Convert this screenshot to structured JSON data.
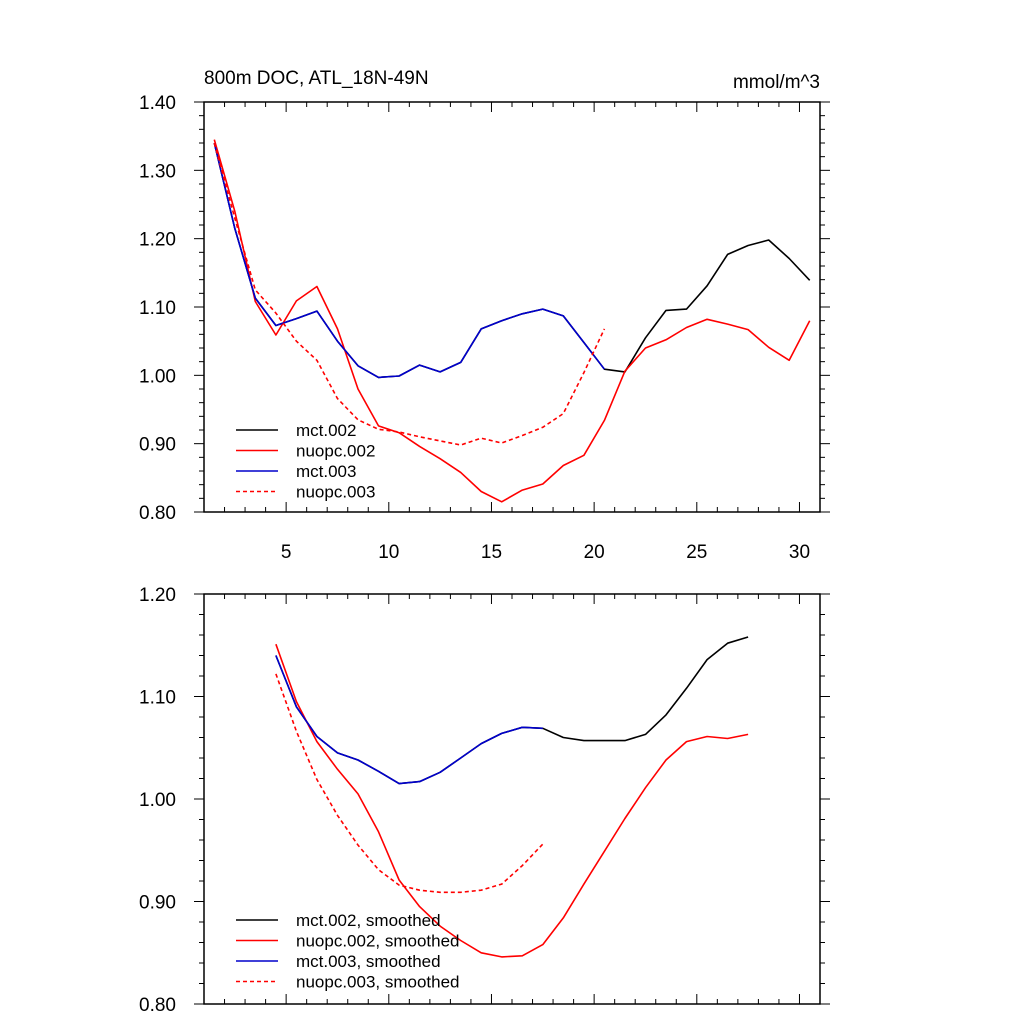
{
  "colors": {
    "mct002": "#000000",
    "nuopc002": "#ff0000",
    "mct003": "#0000cc",
    "nuopc003": "#ff0000"
  },
  "chart_data": [
    {
      "type": "line",
      "title": "800m DOC, ATL_18N-49N",
      "units": "mmol/m^3",
      "xlim": [
        1,
        31
      ],
      "ylim": [
        0.8,
        1.4
      ],
      "x_ticks": [
        5,
        10,
        15,
        20,
        25,
        30
      ],
      "x_tick_labels": [
        "5",
        "10",
        "15",
        "20",
        "25",
        "30"
      ],
      "y_ticks": [
        0.8,
        0.9,
        1.0,
        1.1,
        1.2,
        1.3,
        1.4
      ],
      "y_tick_labels": [
        "0.80",
        "0.90",
        "1.00",
        "1.10",
        "1.20",
        "1.30",
        "1.40"
      ],
      "legend_position": "bottom-left",
      "series": [
        {
          "name": "mct.002",
          "color": "#000000",
          "dash": "solid",
          "x": [
            1.5,
            2.5,
            3.5,
            4.5,
            5.5,
            6.5,
            7.5,
            8.5,
            9.5,
            10.5,
            11.5,
            12.5,
            13.5,
            14.5,
            15.5,
            16.5,
            17.5,
            18.5,
            19.5,
            20.5,
            21.5,
            22.5,
            23.5,
            24.5,
            25.5,
            26.5,
            27.5,
            28.5,
            29.5,
            30.5
          ],
          "values": [
            1.34,
            1.215,
            1.113,
            1.073,
            1.083,
            1.094,
            1.05,
            1.014,
            0.997,
            0.999,
            1.015,
            1.005,
            1.019,
            1.068,
            1.08,
            1.09,
            1.097,
            1.087,
            1.048,
            1.009,
            1.005,
            1.055,
            1.095,
            1.097,
            1.131,
            1.177,
            1.19,
            1.198,
            1.171,
            1.139
          ]
        },
        {
          "name": "nuopc.002",
          "color": "#ff0000",
          "dash": "solid",
          "x": [
            1.5,
            2.5,
            3.5,
            4.5,
            5.5,
            6.5,
            7.5,
            8.5,
            9.5,
            10.5,
            11.5,
            12.5,
            13.5,
            14.5,
            15.5,
            16.5,
            17.5,
            18.5,
            19.5,
            20.5,
            21.5,
            22.5,
            23.5,
            24.5,
            25.5,
            26.5,
            27.5,
            28.5,
            29.5,
            30.5
          ],
          "values": [
            1.345,
            1.24,
            1.108,
            1.059,
            1.109,
            1.13,
            1.068,
            0.98,
            0.926,
            0.916,
            0.896,
            0.878,
            0.858,
            0.83,
            0.815,
            0.832,
            0.841,
            0.868,
            0.883,
            0.934,
            1.006,
            1.04,
            1.052,
            1.07,
            1.082,
            1.075,
            1.067,
            1.041,
            1.022,
            1.08
          ]
        },
        {
          "name": "mct.003",
          "color": "#0000cc",
          "dash": "solid",
          "x": [
            1.5,
            2.5,
            3.5,
            4.5,
            5.5,
            6.5,
            7.5,
            8.5,
            9.5,
            10.5,
            11.5,
            12.5,
            13.5,
            14.5,
            15.5,
            16.5,
            17.5,
            18.5,
            19.5,
            20.5
          ],
          "values": [
            1.34,
            1.215,
            1.113,
            1.073,
            1.083,
            1.094,
            1.05,
            1.014,
            0.997,
            0.999,
            1.015,
            1.005,
            1.019,
            1.068,
            1.08,
            1.09,
            1.097,
            1.087,
            1.048,
            1.009
          ]
        },
        {
          "name": "nuopc.003",
          "color": "#ff0000",
          "dash": "dashed",
          "x": [
            1.5,
            2.5,
            3.5,
            4.5,
            5.5,
            6.5,
            7.5,
            8.5,
            9.5,
            10.5,
            11.5,
            12.5,
            13.5,
            14.5,
            15.5,
            16.5,
            17.5,
            18.5,
            19.5,
            20.5
          ],
          "values": [
            1.34,
            1.23,
            1.125,
            1.091,
            1.05,
            1.022,
            0.966,
            0.935,
            0.921,
            0.917,
            0.91,
            0.904,
            0.898,
            0.908,
            0.901,
            0.912,
            0.924,
            0.944,
            1.004,
            1.068
          ]
        }
      ]
    },
    {
      "type": "line",
      "title": "",
      "xlim": [
        1,
        31
      ],
      "ylim": [
        0.8,
        1.2
      ],
      "x_ticks": [
        5,
        10,
        15,
        20,
        25,
        30
      ],
      "x_tick_labels": [],
      "y_ticks": [
        0.8,
        0.9,
        1.0,
        1.1,
        1.2
      ],
      "y_tick_labels": [
        "0.80",
        "0.90",
        "1.00",
        "1.10",
        "1.20"
      ],
      "legend_position": "bottom-left",
      "series": [
        {
          "name": "mct.002, smoothed",
          "color": "#000000",
          "dash": "solid",
          "x": [
            4.5,
            5.5,
            6.5,
            7.5,
            8.5,
            9.5,
            10.5,
            11.5,
            12.5,
            13.5,
            14.5,
            15.5,
            16.5,
            17.5,
            18.5,
            19.5,
            20.5,
            21.5,
            22.5,
            23.5,
            24.5,
            25.5,
            26.5,
            27.5
          ],
          "values": [
            1.14,
            1.09,
            1.061,
            1.045,
            1.038,
            1.027,
            1.015,
            1.017,
            1.026,
            1.04,
            1.054,
            1.064,
            1.07,
            1.069,
            1.06,
            1.057,
            1.057,
            1.057,
            1.063,
            1.082,
            1.108,
            1.136,
            1.152,
            1.158
          ]
        },
        {
          "name": "nuopc.002, smoothed",
          "color": "#ff0000",
          "dash": "solid",
          "x": [
            4.5,
            5.5,
            6.5,
            7.5,
            8.5,
            9.5,
            10.5,
            11.5,
            12.5,
            13.5,
            14.5,
            15.5,
            16.5,
            17.5,
            18.5,
            19.5,
            20.5,
            21.5,
            22.5,
            23.5,
            24.5,
            25.5,
            26.5,
            27.5
          ],
          "values": [
            1.151,
            1.095,
            1.056,
            1.029,
            1.005,
            0.968,
            0.921,
            0.895,
            0.876,
            0.862,
            0.85,
            0.846,
            0.847,
            0.858,
            0.884,
            0.917,
            0.949,
            0.981,
            1.011,
            1.038,
            1.056,
            1.061,
            1.059,
            1.063
          ]
        },
        {
          "name": "mct.003, smoothed",
          "color": "#0000cc",
          "dash": "solid",
          "x": [
            4.5,
            5.5,
            6.5,
            7.5,
            8.5,
            9.5,
            10.5,
            11.5,
            12.5,
            13.5,
            14.5,
            15.5,
            16.5,
            17.5
          ],
          "values": [
            1.14,
            1.09,
            1.061,
            1.045,
            1.038,
            1.027,
            1.015,
            1.017,
            1.026,
            1.04,
            1.054,
            1.064,
            1.07,
            1.069
          ]
        },
        {
          "name": "nuopc.003, smoothed",
          "color": "#ff0000",
          "dash": "dashed",
          "x": [
            4.5,
            5.5,
            6.5,
            7.5,
            8.5,
            9.5,
            10.5,
            11.5,
            12.5,
            13.5,
            14.5,
            15.5,
            16.5,
            17.5
          ],
          "values": [
            1.122,
            1.066,
            1.019,
            0.984,
            0.955,
            0.931,
            0.916,
            0.911,
            0.909,
            0.909,
            0.911,
            0.917,
            0.935,
            0.956
          ]
        }
      ]
    }
  ]
}
